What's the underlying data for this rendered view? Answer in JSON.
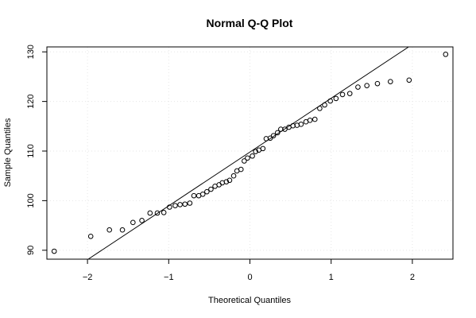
{
  "chart_data": {
    "type": "scatter",
    "title": "Normal Q-Q Plot",
    "xlabel": "Theoretical Quantiles",
    "ylabel": "Sample Quantiles",
    "xlim": [
      -2.5,
      2.5
    ],
    "ylim": [
      88.2,
      131
    ],
    "x_ticks": [
      -2,
      -1,
      0,
      1,
      2
    ],
    "y_ticks": [
      90,
      100,
      110,
      120,
      130
    ],
    "x_tick_labels": [
      "−2",
      "−1",
      "0",
      "1",
      "2"
    ],
    "y_tick_labels": [
      "90",
      "100",
      "110",
      "120",
      "130"
    ],
    "grid": true,
    "points": [
      {
        "x": -2.41,
        "y": 89.8
      },
      {
        "x": -1.96,
        "y": 92.8
      },
      {
        "x": -1.73,
        "y": 94.1
      },
      {
        "x": -1.57,
        "y": 94.1
      },
      {
        "x": -1.44,
        "y": 95.6
      },
      {
        "x": -1.33,
        "y": 96.0
      },
      {
        "x": -1.23,
        "y": 97.5
      },
      {
        "x": -1.14,
        "y": 97.5
      },
      {
        "x": -1.06,
        "y": 97.6
      },
      {
        "x": -0.99,
        "y": 98.7
      },
      {
        "x": -0.92,
        "y": 99.0
      },
      {
        "x": -0.86,
        "y": 99.2
      },
      {
        "x": -0.8,
        "y": 99.3
      },
      {
        "x": -0.74,
        "y": 99.5
      },
      {
        "x": -0.69,
        "y": 101.0
      },
      {
        "x": -0.63,
        "y": 101.0
      },
      {
        "x": -0.58,
        "y": 101.3
      },
      {
        "x": -0.53,
        "y": 101.8
      },
      {
        "x": -0.48,
        "y": 102.3
      },
      {
        "x": -0.43,
        "y": 102.9
      },
      {
        "x": -0.38,
        "y": 103.2
      },
      {
        "x": -0.34,
        "y": 103.6
      },
      {
        "x": -0.29,
        "y": 103.8
      },
      {
        "x": -0.25,
        "y": 104.1
      },
      {
        "x": -0.2,
        "y": 105.0
      },
      {
        "x": -0.16,
        "y": 106.0
      },
      {
        "x": -0.11,
        "y": 106.3
      },
      {
        "x": -0.07,
        "y": 108.0
      },
      {
        "x": -0.03,
        "y": 108.6
      },
      {
        "x": 0.03,
        "y": 109.0
      },
      {
        "x": 0.07,
        "y": 109.9
      },
      {
        "x": 0.11,
        "y": 110.2
      },
      {
        "x": 0.16,
        "y": 110.5
      },
      {
        "x": 0.2,
        "y": 112.5
      },
      {
        "x": 0.25,
        "y": 112.6
      },
      {
        "x": 0.29,
        "y": 113.1
      },
      {
        "x": 0.34,
        "y": 113.7
      },
      {
        "x": 0.38,
        "y": 114.4
      },
      {
        "x": 0.43,
        "y": 114.4
      },
      {
        "x": 0.48,
        "y": 114.8
      },
      {
        "x": 0.53,
        "y": 115.1
      },
      {
        "x": 0.58,
        "y": 115.2
      },
      {
        "x": 0.63,
        "y": 115.4
      },
      {
        "x": 0.69,
        "y": 115.9
      },
      {
        "x": 0.74,
        "y": 116.2
      },
      {
        "x": 0.8,
        "y": 116.4
      },
      {
        "x": 0.86,
        "y": 118.6
      },
      {
        "x": 0.92,
        "y": 119.3
      },
      {
        "x": 0.99,
        "y": 120.1
      },
      {
        "x": 1.06,
        "y": 120.6
      },
      {
        "x": 1.14,
        "y": 121.4
      },
      {
        "x": 1.23,
        "y": 121.6
      },
      {
        "x": 1.33,
        "y": 122.9
      },
      {
        "x": 1.44,
        "y": 123.2
      },
      {
        "x": 1.57,
        "y": 123.6
      },
      {
        "x": 1.73,
        "y": 124.0
      },
      {
        "x": 1.96,
        "y": 124.3
      },
      {
        "x": 2.41,
        "y": 129.5
      }
    ],
    "reference_line": {
      "intercept": 109.8,
      "slope": 10.85
    }
  }
}
